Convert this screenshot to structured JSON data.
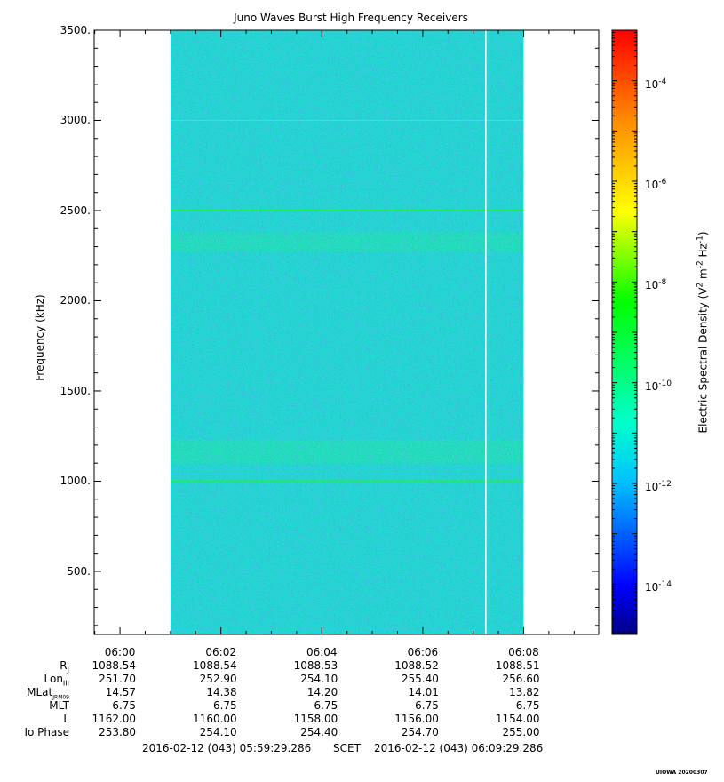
{
  "chart_data": {
    "type": "heatmap",
    "title": "Juno Waves Burst High Frequency Receivers",
    "ylabel": "Frequency (kHz)",
    "ylim": [
      150,
      3500
    ],
    "yticks": [
      500,
      1000,
      1500,
      2000,
      2500,
      3000,
      3500
    ],
    "ytick_labels": [
      "500.",
      "1000.",
      "1500.",
      "2000.",
      "2500.",
      "3000.",
      "3500."
    ],
    "x_range_minutes": [
      "05:59:29.286",
      "06:09:29.286"
    ],
    "xtick_labels": [
      "06:00",
      "06:02",
      "06:04",
      "06:06",
      "06:08"
    ],
    "data_time_span": [
      "06:01:00",
      "06:08:00"
    ],
    "data_gap_time": "06:07:15",
    "features": [
      {
        "frequency_khz": 1000,
        "kind": "narrowband line"
      },
      {
        "frequency_khz": 2500,
        "kind": "narrowband line"
      },
      {
        "frequency_khz": 3000,
        "kind": "weak line"
      },
      {
        "frequency_khz_range": [
          1100,
          1230
        ],
        "kind": "enhanced band"
      },
      {
        "frequency_khz_range": [
          2270,
          2380
        ],
        "kind": "enhanced band"
      }
    ],
    "background_level": "1e-12",
    "colorbar": {
      "label": "Electric Spectral Density (V",
      "label_parts": [
        "Electric Spectral Density (V",
        "2",
        " m",
        "-2",
        " Hz",
        "-1",
        ")"
      ],
      "scale": "log",
      "range": [
        1e-15,
        0.001
      ],
      "tick_base": "10",
      "tick_exponents": [
        "-4",
        "-6",
        "-8",
        "-10",
        "-12",
        "-14"
      ],
      "colors": [
        "#000000",
        "#00008b",
        "#0000ff",
        "#00bfff",
        "#00ffcc",
        "#00ff00",
        "#ffff00",
        "#ff8c00",
        "#ff0000"
      ]
    },
    "ephemeris": {
      "row_labels": [
        "R",
        "Lon",
        "MLat",
        "MLT",
        "L",
        "Io Phase"
      ],
      "row_subscripts": [
        "J",
        "III",
        "JRM09",
        "",
        "",
        ""
      ],
      "columns": [
        [
          "1088.54",
          "251.70",
          "14.57",
          "6.75",
          "1162.00",
          "253.80"
        ],
        [
          "1088.54",
          "252.90",
          "14.38",
          "6.75",
          "1160.00",
          "254.10"
        ],
        [
          "1088.53",
          "254.10",
          "14.20",
          "6.75",
          "1158.00",
          "254.40"
        ],
        [
          "1088.52",
          "255.40",
          "14.01",
          "6.75",
          "1156.00",
          "254.70"
        ],
        [
          "1088.51",
          "256.60",
          "13.82",
          "6.75",
          "1154.00",
          "255.00"
        ]
      ]
    },
    "footer": {
      "start": "2016-02-12 (043) 05:59:29.286",
      "frame": "SCET",
      "end": "2016-02-12 (043) 06:09:29.286",
      "stamp": "UIOWA 20200307"
    }
  }
}
